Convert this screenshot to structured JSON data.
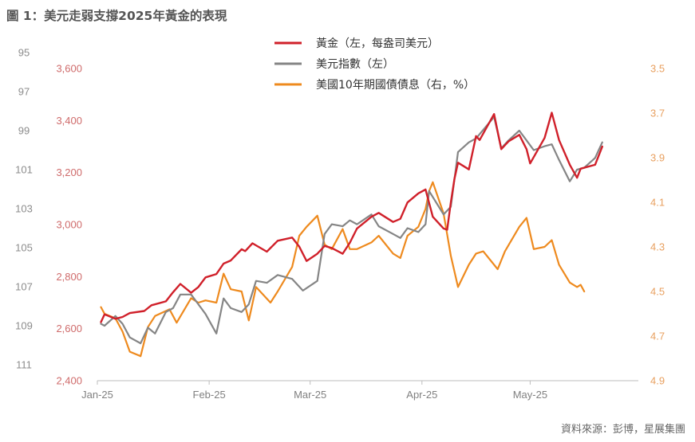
{
  "title": "圖 1：美元走弱支撐2025年黃金的表現",
  "source": "資料來源：彭博，星展集團",
  "colors": {
    "gold": "#d0202a",
    "dxy": "#858585",
    "yield": "#ee8a1e"
  },
  "chart_data": {
    "type": "line",
    "title": "圖 1：美元走弱支撐2025年黃金的表現",
    "x_ticks": [
      "Jan-25",
      "Feb-25",
      "Mar-25",
      "Apr-25",
      "May-25"
    ],
    "x_range": [
      "2025-01-01",
      "2025-05-31"
    ],
    "axes": {
      "dxy": {
        "side": "far-left",
        "reversed": true,
        "ylim": [
          95,
          111
        ],
        "ticks": [
          "95",
          "97",
          "99",
          "101",
          "103",
          "105",
          "107",
          "109",
          "111"
        ]
      },
      "gold": {
        "side": "left",
        "reversed": false,
        "ylim": [
          2400,
          3600
        ],
        "ticks": [
          "3,600",
          "3,400",
          "3,200",
          "3,000",
          "2,800",
          "2,600",
          "2,400"
        ]
      },
      "yield": {
        "side": "right",
        "reversed": true,
        "ylim": [
          3.5,
          4.9
        ],
        "ticks": [
          "3.5",
          "3.7",
          "3.9",
          "4.1",
          "4.3",
          "4.5",
          "4.7",
          "4.9"
        ]
      }
    },
    "legend_position": "top-center",
    "grid": false,
    "series": [
      {
        "key": "gold",
        "name": "黃金（左，每盎司美元）",
        "axis": "gold",
        "points": [
          [
            "2025-01-02",
            2625
          ],
          [
            "2025-01-03",
            2655
          ],
          [
            "2025-01-06",
            2638
          ],
          [
            "2025-01-08",
            2645
          ],
          [
            "2025-01-10",
            2660
          ],
          [
            "2025-01-14",
            2668
          ],
          [
            "2025-01-16",
            2690
          ],
          [
            "2025-01-20",
            2705
          ],
          [
            "2025-01-22",
            2740
          ],
          [
            "2025-01-24",
            2772
          ],
          [
            "2025-01-27",
            2738
          ],
          [
            "2025-01-29",
            2760
          ],
          [
            "2025-01-31",
            2797
          ],
          [
            "2025-02-03",
            2810
          ],
          [
            "2025-02-05",
            2850
          ],
          [
            "2025-02-07",
            2862
          ],
          [
            "2025-02-10",
            2905
          ],
          [
            "2025-02-11",
            2898
          ],
          [
            "2025-02-13",
            2928
          ],
          [
            "2025-02-17",
            2896
          ],
          [
            "2025-02-20",
            2938
          ],
          [
            "2025-02-24",
            2950
          ],
          [
            "2025-02-26",
            2915
          ],
          [
            "2025-02-28",
            2860
          ],
          [
            "2025-03-03",
            2888
          ],
          [
            "2025-03-05",
            2918
          ],
          [
            "2025-03-07",
            2910
          ],
          [
            "2025-03-10",
            2888
          ],
          [
            "2025-03-12",
            2930
          ],
          [
            "2025-03-14",
            2985
          ],
          [
            "2025-03-18",
            3030
          ],
          [
            "2025-03-20",
            3045
          ],
          [
            "2025-03-24",
            3010
          ],
          [
            "2025-03-26",
            3022
          ],
          [
            "2025-03-28",
            3085
          ],
          [
            "2025-03-31",
            3120
          ],
          [
            "2025-04-02",
            3135
          ],
          [
            "2025-04-04",
            3030
          ],
          [
            "2025-04-07",
            2985
          ],
          [
            "2025-04-08",
            2980
          ],
          [
            "2025-04-09",
            3085
          ],
          [
            "2025-04-10",
            3175
          ],
          [
            "2025-04-11",
            3238
          ],
          [
            "2025-04-14",
            3212
          ],
          [
            "2025-04-16",
            3340
          ],
          [
            "2025-04-17",
            3325
          ],
          [
            "2025-04-21",
            3425
          ],
          [
            "2025-04-23",
            3290
          ],
          [
            "2025-04-25",
            3320
          ],
          [
            "2025-04-28",
            3345
          ],
          [
            "2025-04-30",
            3290
          ],
          [
            "2025-05-01",
            3235
          ],
          [
            "2025-05-05",
            3333
          ],
          [
            "2025-05-07",
            3430
          ],
          [
            "2025-05-09",
            3325
          ],
          [
            "2025-05-12",
            3230
          ],
          [
            "2025-05-14",
            3180
          ],
          [
            "2025-05-15",
            3215
          ],
          [
            "2025-05-19",
            3230
          ],
          [
            "2025-05-21",
            3300
          ]
        ]
      },
      {
        "key": "dxy",
        "name": "美元指數（左）",
        "axis": "dxy",
        "points": [
          [
            "2025-01-02",
            108.9
          ],
          [
            "2025-01-03",
            109.0
          ],
          [
            "2025-01-06",
            108.5
          ],
          [
            "2025-01-08",
            108.9
          ],
          [
            "2025-01-10",
            109.6
          ],
          [
            "2025-01-13",
            109.9
          ],
          [
            "2025-01-15",
            109.1
          ],
          [
            "2025-01-17",
            109.4
          ],
          [
            "2025-01-20",
            108.3
          ],
          [
            "2025-01-22",
            108.1
          ],
          [
            "2025-01-24",
            107.4
          ],
          [
            "2025-01-27",
            107.4
          ],
          [
            "2025-01-29",
            107.9
          ],
          [
            "2025-01-31",
            108.4
          ],
          [
            "2025-02-03",
            109.4
          ],
          [
            "2025-02-05",
            107.6
          ],
          [
            "2025-02-07",
            108.1
          ],
          [
            "2025-02-10",
            108.3
          ],
          [
            "2025-02-12",
            107.9
          ],
          [
            "2025-02-14",
            106.7
          ],
          [
            "2025-02-17",
            106.8
          ],
          [
            "2025-02-20",
            106.4
          ],
          [
            "2025-02-24",
            106.6
          ],
          [
            "2025-02-27",
            107.2
          ],
          [
            "2025-03-03",
            106.7
          ],
          [
            "2025-03-05",
            104.3
          ],
          [
            "2025-03-07",
            103.8
          ],
          [
            "2025-03-10",
            103.9
          ],
          [
            "2025-03-12",
            103.6
          ],
          [
            "2025-03-14",
            103.8
          ],
          [
            "2025-03-18",
            103.3
          ],
          [
            "2025-03-20",
            103.9
          ],
          [
            "2025-03-24",
            104.3
          ],
          [
            "2025-03-26",
            104.5
          ],
          [
            "2025-03-28",
            104.0
          ],
          [
            "2025-03-31",
            104.2
          ],
          [
            "2025-04-02",
            103.8
          ],
          [
            "2025-04-03",
            102.1
          ],
          [
            "2025-04-07",
            103.3
          ],
          [
            "2025-04-09",
            102.9
          ],
          [
            "2025-04-11",
            100.1
          ],
          [
            "2025-04-14",
            99.6
          ],
          [
            "2025-04-16",
            99.4
          ],
          [
            "2025-04-21",
            98.3
          ],
          [
            "2025-04-23",
            99.9
          ],
          [
            "2025-04-25",
            99.5
          ],
          [
            "2025-04-28",
            99.0
          ],
          [
            "2025-04-30",
            99.5
          ],
          [
            "2025-05-02",
            100.0
          ],
          [
            "2025-05-05",
            99.8
          ],
          [
            "2025-05-07",
            99.7
          ],
          [
            "2025-05-09",
            100.5
          ],
          [
            "2025-05-12",
            101.6
          ],
          [
            "2025-05-14",
            101.0
          ],
          [
            "2025-05-16",
            100.9
          ],
          [
            "2025-05-19",
            100.4
          ],
          [
            "2025-05-21",
            99.6
          ]
        ]
      },
      {
        "key": "yield",
        "name": "美國10年期國債債息（右，%）",
        "axis": "yield",
        "points": [
          [
            "2025-01-02",
            4.57
          ],
          [
            "2025-01-03",
            4.6
          ],
          [
            "2025-01-06",
            4.62
          ],
          [
            "2025-01-08",
            4.68
          ],
          [
            "2025-01-10",
            4.77
          ],
          [
            "2025-01-13",
            4.79
          ],
          [
            "2025-01-15",
            4.66
          ],
          [
            "2025-01-17",
            4.61
          ],
          [
            "2025-01-21",
            4.58
          ],
          [
            "2025-01-23",
            4.64
          ],
          [
            "2025-01-27",
            4.53
          ],
          [
            "2025-01-29",
            4.55
          ],
          [
            "2025-01-31",
            4.54
          ],
          [
            "2025-02-03",
            4.55
          ],
          [
            "2025-02-05",
            4.42
          ],
          [
            "2025-02-07",
            4.49
          ],
          [
            "2025-02-10",
            4.5
          ],
          [
            "2025-02-12",
            4.63
          ],
          [
            "2025-02-14",
            4.48
          ],
          [
            "2025-02-18",
            4.55
          ],
          [
            "2025-02-20",
            4.5
          ],
          [
            "2025-02-24",
            4.39
          ],
          [
            "2025-02-26",
            4.25
          ],
          [
            "2025-02-28",
            4.21
          ],
          [
            "2025-03-03",
            4.16
          ],
          [
            "2025-03-05",
            4.29
          ],
          [
            "2025-03-07",
            4.31
          ],
          [
            "2025-03-10",
            4.22
          ],
          [
            "2025-03-12",
            4.31
          ],
          [
            "2025-03-14",
            4.31
          ],
          [
            "2025-03-18",
            4.28
          ],
          [
            "2025-03-20",
            4.25
          ],
          [
            "2025-03-24",
            4.33
          ],
          [
            "2025-03-26",
            4.35
          ],
          [
            "2025-03-28",
            4.25
          ],
          [
            "2025-03-31",
            4.21
          ],
          [
            "2025-04-02",
            4.13
          ],
          [
            "2025-04-03",
            4.05
          ],
          [
            "2025-04-04",
            4.01
          ],
          [
            "2025-04-07",
            4.15
          ],
          [
            "2025-04-09",
            4.34
          ],
          [
            "2025-04-11",
            4.48
          ],
          [
            "2025-04-14",
            4.38
          ],
          [
            "2025-04-16",
            4.33
          ],
          [
            "2025-04-18",
            4.32
          ],
          [
            "2025-04-22",
            4.4
          ],
          [
            "2025-04-24",
            4.32
          ],
          [
            "2025-04-28",
            4.21
          ],
          [
            "2025-04-30",
            4.17
          ],
          [
            "2025-05-02",
            4.31
          ],
          [
            "2025-05-05",
            4.3
          ],
          [
            "2025-05-07",
            4.27
          ],
          [
            "2025-05-09",
            4.38
          ],
          [
            "2025-05-12",
            4.46
          ],
          [
            "2025-05-14",
            4.48
          ],
          [
            "2025-05-15",
            4.47
          ],
          [
            "2025-05-16",
            4.5
          ]
        ]
      }
    ]
  }
}
